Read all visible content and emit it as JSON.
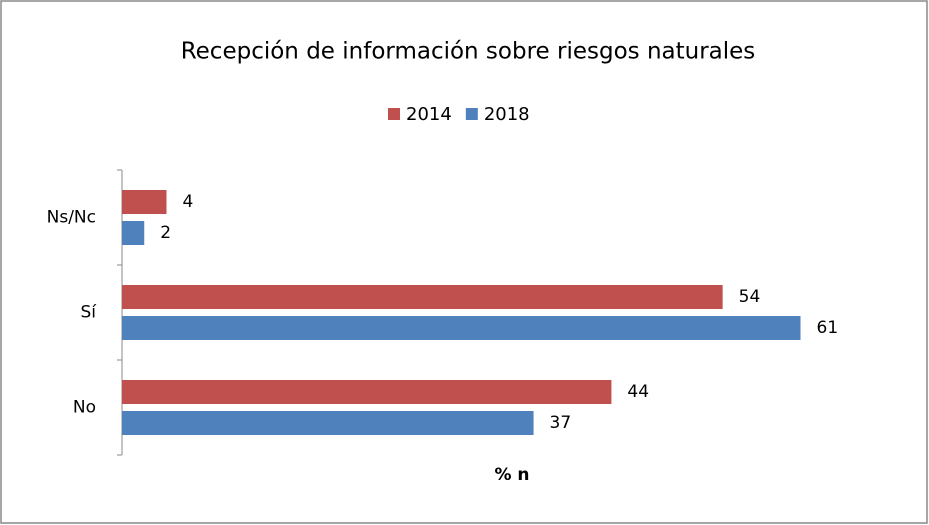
{
  "chart_data": {
    "type": "barh",
    "title": "Recepción de información sobre riesgos naturales",
    "categories": [
      "Ns/Nc",
      "Sí",
      "No"
    ],
    "series": [
      {
        "name": "2014",
        "color": "#c0504d",
        "values": [
          4,
          54,
          44
        ]
      },
      {
        "name": "2018",
        "color": "#4f81bd",
        "values": [
          2,
          61,
          37
        ]
      }
    ],
    "xlabel": "% n",
    "xlim": [
      0,
      65
    ],
    "legend": "top"
  }
}
